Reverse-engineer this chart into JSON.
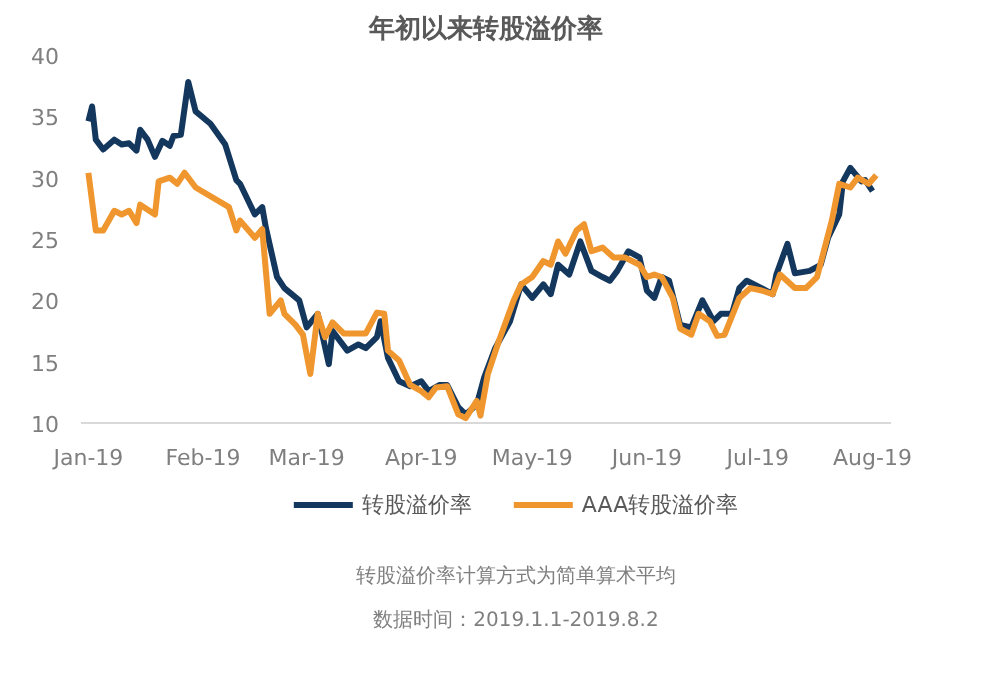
{
  "chart_data": {
    "type": "line",
    "title": "年初以来转股溢价率",
    "annotations": [
      "转股溢价率计算方式为简单算术平均",
      "数据时间：2019.1.1-2019.8.2"
    ],
    "xlim": [
      "2018-12-30",
      "2019-08-06"
    ],
    "xticks": [
      {
        "value": "2019-01-01",
        "label": "Jan-19"
      },
      {
        "value": "2019-02-01",
        "label": "Feb-19"
      },
      {
        "value": "2019-03-01",
        "label": "Mar-19"
      },
      {
        "value": "2019-04-01",
        "label": "Apr-19"
      },
      {
        "value": "2019-05-01",
        "label": "May-19"
      },
      {
        "value": "2019-06-01",
        "label": "Jun-19"
      },
      {
        "value": "2019-07-01",
        "label": "Jul-19"
      },
      {
        "value": "2019-08-01",
        "label": "Aug-19"
      }
    ],
    "ylim": [
      10,
      40
    ],
    "yticks": [
      10,
      15,
      20,
      25,
      30,
      35,
      40
    ],
    "grid": false,
    "legend": "bottom",
    "marker": "none",
    "line_style": "solid",
    "series": [
      {
        "name": "转股溢价率",
        "color": "#14375e",
        "x": [
          "2019-01-01",
          "2019-01-02",
          "2019-01-03",
          "2019-01-05",
          "2019-01-08",
          "2019-01-10",
          "2019-01-12",
          "2019-01-14",
          "2019-01-15",
          "2019-01-17",
          "2019-01-19",
          "2019-01-21",
          "2019-01-23",
          "2019-01-24",
          "2019-01-26",
          "2019-01-28",
          "2019-01-30",
          "2019-02-03",
          "2019-02-07",
          "2019-02-10",
          "2019-02-11",
          "2019-02-15",
          "2019-02-17",
          "2019-02-18",
          "2019-02-21",
          "2019-02-23",
          "2019-02-27",
          "2019-03-01",
          "2019-03-04",
          "2019-03-07",
          "2019-03-08",
          "2019-03-12",
          "2019-03-15",
          "2019-03-17",
          "2019-03-20",
          "2019-03-21",
          "2019-03-23",
          "2019-03-26",
          "2019-03-29",
          "2019-04-01",
          "2019-04-03",
          "2019-04-06",
          "2019-04-08",
          "2019-04-11",
          "2019-04-13",
          "2019-04-16",
          "2019-04-18",
          "2019-04-21",
          "2019-04-25",
          "2019-04-28",
          "2019-05-01",
          "2019-05-04",
          "2019-05-06",
          "2019-05-08",
          "2019-05-11",
          "2019-05-14",
          "2019-05-17",
          "2019-05-20",
          "2019-05-22",
          "2019-05-24",
          "2019-05-27",
          "2019-05-30",
          "2019-06-01",
          "2019-06-03",
          "2019-06-05",
          "2019-06-07",
          "2019-06-10",
          "2019-06-13",
          "2019-06-16",
          "2019-06-19",
          "2019-06-21",
          "2019-06-24",
          "2019-06-26",
          "2019-06-28",
          "2019-07-02",
          "2019-07-05",
          "2019-07-06",
          "2019-07-09",
          "2019-07-11",
          "2019-07-15",
          "2019-07-18",
          "2019-07-20",
          "2019-07-23",
          "2019-07-24",
          "2019-07-26",
          "2019-07-29",
          "2019-07-30",
          "2019-08-01"
        ],
        "values": [
          34.6,
          35.8,
          33.1,
          32.3,
          33.1,
          32.7,
          32.8,
          32.2,
          33.9,
          33.1,
          31.7,
          33.0,
          32.6,
          33.4,
          33.5,
          37.8,
          35.4,
          34.4,
          32.7,
          29.8,
          29.5,
          27.0,
          27.6,
          25.9,
          21.9,
          21.0,
          20.0,
          17.8,
          18.9,
          14.8,
          17.5,
          15.9,
          16.4,
          16.1,
          17.0,
          18.3,
          15.3,
          13.4,
          13.0,
          13.4,
          12.6,
          13.1,
          13.1,
          11.3,
          10.7,
          11.5,
          13.7,
          16.1,
          18.3,
          21.3,
          20.2,
          21.3,
          20.5,
          22.9,
          22.1,
          24.8,
          22.4,
          21.9,
          21.6,
          22.4,
          24.0,
          23.5,
          20.8,
          20.2,
          21.9,
          21.6,
          18.0,
          17.8,
          20.0,
          18.3,
          18.9,
          18.9,
          21.0,
          21.6,
          21.0,
          20.5,
          22.1,
          24.6,
          22.2,
          22.4,
          22.9,
          25.1,
          27.0,
          29.7,
          30.8,
          29.7,
          29.8,
          28.9
        ]
      },
      {
        "name": "AAA转股溢价率",
        "color": "#f0962e",
        "x": [
          "2019-01-01",
          "2019-01-03",
          "2019-01-05",
          "2019-01-08",
          "2019-01-10",
          "2019-01-12",
          "2019-01-14",
          "2019-01-15",
          "2019-01-19",
          "2019-01-20",
          "2019-01-23",
          "2019-01-25",
          "2019-01-27",
          "2019-01-30",
          "2019-02-08",
          "2019-02-10",
          "2019-02-11",
          "2019-02-15",
          "2019-02-17",
          "2019-02-19",
          "2019-02-22",
          "2019-02-23",
          "2019-02-26",
          "2019-02-28",
          "2019-03-02",
          "2019-03-04",
          "2019-03-06",
          "2019-03-08",
          "2019-03-11",
          "2019-03-15",
          "2019-03-17",
          "2019-03-20",
          "2019-03-22",
          "2019-03-23",
          "2019-03-26",
          "2019-03-29",
          "2019-04-01",
          "2019-04-03",
          "2019-04-05",
          "2019-04-08",
          "2019-04-11",
          "2019-04-13",
          "2019-04-16",
          "2019-04-17",
          "2019-04-19",
          "2019-04-22",
          "2019-04-26",
          "2019-04-28",
          "2019-05-01",
          "2019-05-04",
          "2019-05-06",
          "2019-05-08",
          "2019-05-10",
          "2019-05-13",
          "2019-05-15",
          "2019-05-17",
          "2019-05-20",
          "2019-05-23",
          "2019-05-26",
          "2019-05-30",
          "2019-06-01",
          "2019-06-03",
          "2019-06-05",
          "2019-06-08",
          "2019-06-10",
          "2019-06-13",
          "2019-06-15",
          "2019-06-18",
          "2019-06-20",
          "2019-06-22",
          "2019-06-26",
          "2019-06-29",
          "2019-07-02",
          "2019-07-05",
          "2019-07-07",
          "2019-07-11",
          "2019-07-14",
          "2019-07-17",
          "2019-07-21",
          "2019-07-23",
          "2019-07-26",
          "2019-07-28",
          "2019-07-31",
          "2019-08-02"
        ],
        "values": [
          30.4,
          25.7,
          25.7,
          27.3,
          27.0,
          27.3,
          26.3,
          27.8,
          27.0,
          29.7,
          30.0,
          29.5,
          30.4,
          29.2,
          27.6,
          25.7,
          26.5,
          25.1,
          25.8,
          18.9,
          20.0,
          18.9,
          18.0,
          17.2,
          14.0,
          18.9,
          17.0,
          18.2,
          17.3,
          17.3,
          17.3,
          19.0,
          18.9,
          15.9,
          15.1,
          13.1,
          12.6,
          12.1,
          12.9,
          13.0,
          10.7,
          10.4,
          11.8,
          10.6,
          14.0,
          16.7,
          20.0,
          21.3,
          21.9,
          23.2,
          22.9,
          24.8,
          23.8,
          25.7,
          26.2,
          24.0,
          24.3,
          23.5,
          23.5,
          22.9,
          21.9,
          22.1,
          21.9,
          20.2,
          17.7,
          17.2,
          18.9,
          18.3,
          17.1,
          17.2,
          20.2,
          21.0,
          20.8,
          20.5,
          22.1,
          21.0,
          21.0,
          21.9,
          26.5,
          29.5,
          29.2,
          30.0,
          29.5,
          30.2
        ]
      }
    ]
  }
}
